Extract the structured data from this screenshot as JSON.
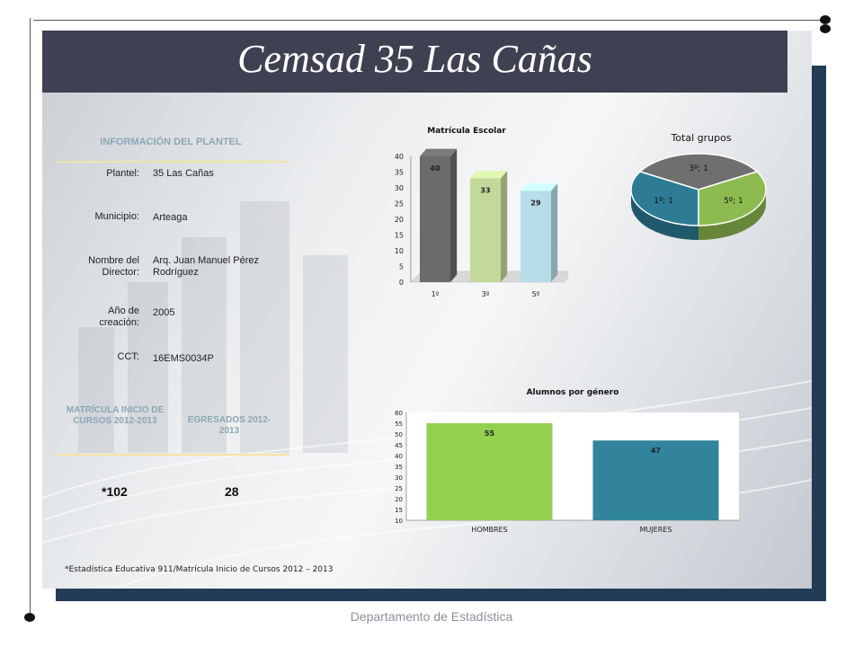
{
  "title": "Cemsad 35 Las Cañas",
  "info": {
    "heading": "INFORMACIÓN DEL PLANTEL",
    "rows": [
      {
        "label": "Plantel:",
        "value": "35 Las Cañas"
      },
      {
        "label": "Municipio:",
        "value": "Arteaga"
      },
      {
        "label": "Nombre del Director:",
        "value": "Arq. Juan Manuel Pérez Rodríguez"
      },
      {
        "label": "Año de creación:",
        "value": "2005"
      },
      {
        "label": "CCT:",
        "value": "16EMS0034P"
      }
    ]
  },
  "stats": {
    "matricula_heading": "MATRÍCULA INICIO DE CURSOS 2012-2013",
    "egresados_heading": "EGRESADOS 2012-2013",
    "matricula_value": "*102",
    "egresados_value": "28"
  },
  "footnote": "*Estadística Educativa 911/Matrícula Inicio de Cursos 2012 – 2013",
  "footer": "Departamento de Estadística",
  "colors": {
    "title_bar": "#3f4152",
    "frame_shadow": "#233b55",
    "heading": "#8aa7b4",
    "gold_line": "#f1e4a6"
  },
  "chart_data": [
    {
      "type": "bar",
      "title": "Matrícula Escolar",
      "categories": [
        "1º",
        "3º",
        "5º"
      ],
      "values": [
        40,
        33,
        29
      ],
      "data_labels": [
        "40",
        "33",
        "29"
      ],
      "ylim": [
        0,
        40
      ],
      "yticks": [
        "0",
        "5",
        "10",
        "15",
        "20",
        "25",
        "30",
        "35",
        "40"
      ],
      "grid": false,
      "colors": [
        "#6b6b6b",
        "#c3d89b",
        "#b7dde8"
      ]
    },
    {
      "type": "pie",
      "title": "Total grupos",
      "labels": [
        "3º; 1",
        "5º; 1",
        "1º; 1"
      ],
      "values": [
        1,
        1,
        1
      ],
      "colors": [
        "#6f6f6f",
        "#8dbb4f",
        "#2e7b96"
      ]
    },
    {
      "type": "bar",
      "title": "Alumnos por género",
      "categories": [
        "HOMBRES",
        "MUJERES"
      ],
      "values": [
        55,
        47
      ],
      "data_labels": [
        "55",
        "47"
      ],
      "ylim": [
        10,
        60
      ],
      "yticks": [
        "10",
        "15",
        "20",
        "25",
        "30",
        "35",
        "40",
        "45",
        "50",
        "55",
        "60"
      ],
      "grid": false,
      "colors": [
        "#92d050",
        "#31849b"
      ]
    }
  ]
}
